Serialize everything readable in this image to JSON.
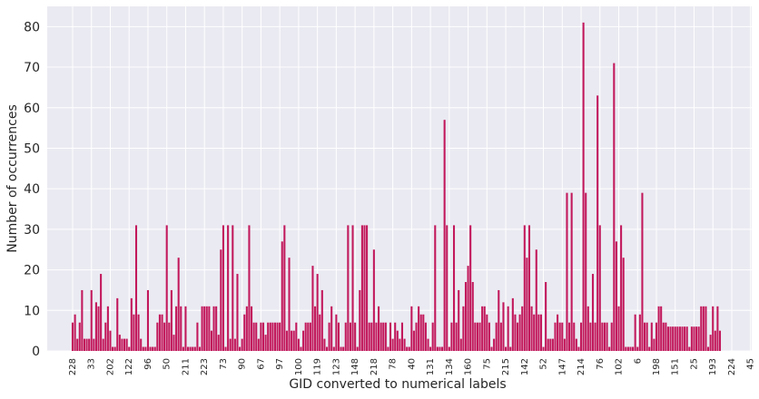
{
  "chart_data": {
    "type": "bar",
    "title": "",
    "xlabel": "GID converted to numerical labels",
    "ylabel": "Number of occurrences",
    "ylim": [
      0,
      85
    ],
    "yticks": [
      0,
      10,
      20,
      30,
      40,
      50,
      60,
      70,
      80
    ],
    "grid": true,
    "legend": "none",
    "colors": {
      "bar": "#C2185B",
      "background": "#EAEAF2",
      "grid": "#FFFFFF",
      "text": "#262626"
    },
    "xtick_labels": [
      "228",
      "33",
      "202",
      "122",
      "96",
      "50",
      "211",
      "223",
      "73",
      "90",
      "67",
      "97",
      "100",
      "119",
      "123",
      "148",
      "218",
      "78",
      "40",
      "131",
      "134",
      "160",
      "75",
      "215",
      "142",
      "52",
      "147",
      "214",
      "76",
      "102",
      "6",
      "198",
      "151",
      "25",
      "193",
      "224",
      "45"
    ],
    "values": [
      7,
      9,
      3,
      7,
      15,
      3,
      3,
      3,
      15,
      3,
      12,
      11,
      19,
      3,
      7,
      11,
      5,
      1,
      1,
      13,
      4,
      3,
      3,
      3,
      1,
      13,
      9,
      31,
      9,
      3,
      1,
      1,
      15,
      1,
      1,
      1,
      7,
      9,
      9,
      7,
      31,
      7,
      15,
      4,
      11,
      23,
      11,
      1,
      11,
      1,
      1,
      1,
      1,
      7,
      1,
      11,
      11,
      11,
      11,
      5,
      11,
      11,
      4,
      25,
      31,
      1,
      31,
      3,
      31,
      3,
      19,
      1,
      3,
      9,
      11,
      31,
      11,
      7,
      7,
      3,
      7,
      7,
      4,
      7,
      7,
      7,
      7,
      7,
      7,
      27,
      31,
      5,
      23,
      5,
      5,
      7,
      3,
      1,
      5,
      7,
      7,
      7,
      21,
      11,
      19,
      9,
      15,
      3,
      1,
      7,
      11,
      1,
      9,
      7,
      1,
      1,
      7,
      31,
      7,
      31,
      7,
      1,
      15,
      31,
      31,
      31,
      7,
      7,
      25,
      7,
      11,
      7,
      7,
      7,
      1,
      7,
      3,
      7,
      5,
      3,
      7,
      3,
      1,
      1,
      11,
      5,
      7,
      11,
      9,
      9,
      7,
      3,
      1,
      7,
      31,
      1,
      1,
      1,
      57,
      31,
      1,
      7,
      31,
      7,
      15,
      3,
      11,
      17,
      21,
      31,
      17,
      7,
      7,
      7,
      11,
      11,
      9,
      7,
      1,
      3,
      7,
      15,
      7,
      12,
      1,
      11,
      1,
      13,
      9,
      7,
      9,
      11,
      31,
      23,
      31,
      11,
      9,
      25,
      9,
      9,
      1,
      17,
      3,
      3,
      3,
      7,
      9,
      7,
      7,
      3,
      39,
      7,
      39,
      7,
      3,
      1,
      7,
      81,
      39,
      11,
      7,
      19,
      7,
      63,
      31,
      7,
      7,
      7,
      1,
      7,
      71,
      27,
      11,
      31,
      23,
      1,
      1,
      1,
      1,
      9,
      1,
      9,
      39,
      7,
      7,
      1,
      7,
      3,
      7,
      11,
      11,
      7,
      7,
      6,
      6,
      6,
      6,
      6,
      6,
      6,
      6,
      6,
      1,
      6,
      6,
      6,
      6,
      11,
      11,
      11,
      1,
      4,
      11,
      5,
      11,
      5
    ]
  }
}
